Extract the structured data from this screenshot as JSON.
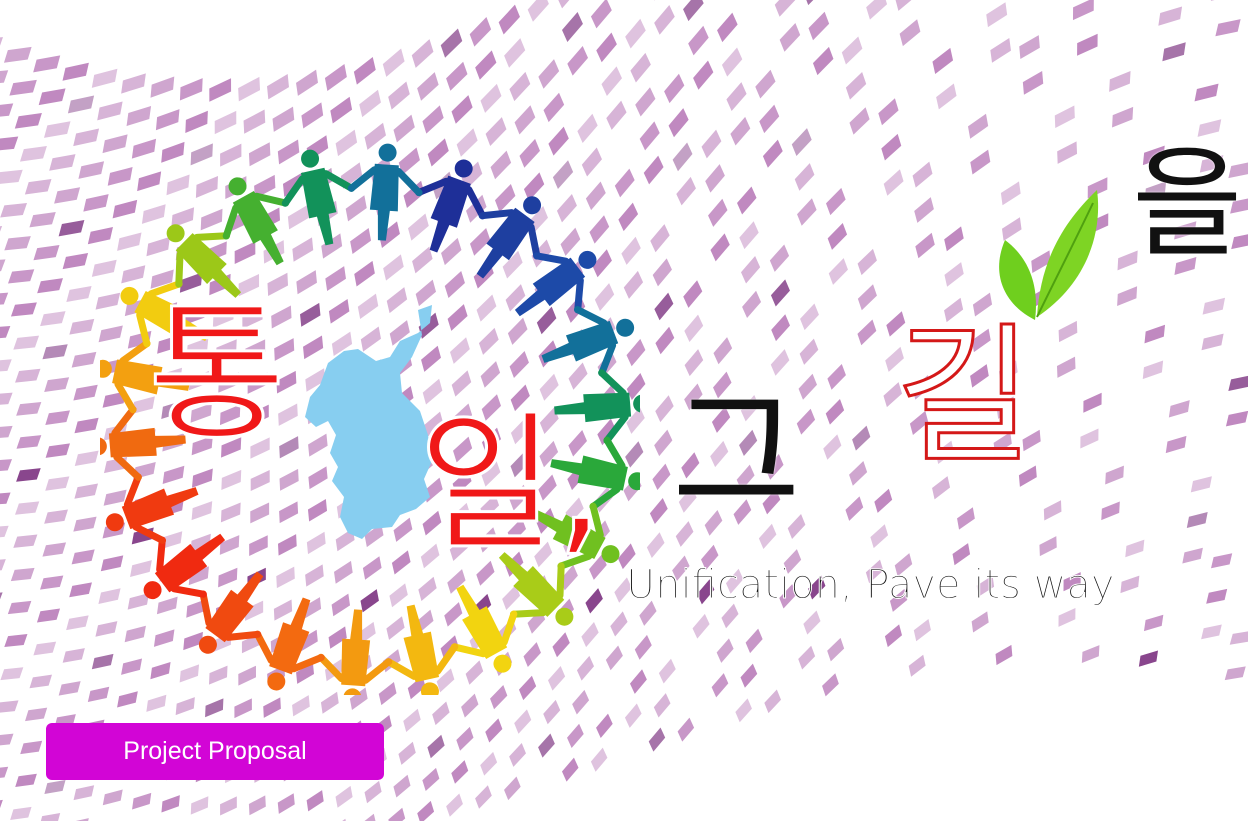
{
  "title": {
    "char_1": "통",
    "char_2": "일,",
    "char_3": "그",
    "char_4": "길",
    "char_5": "을"
  },
  "subtitle": "Unification, Pave its way",
  "badge": {
    "label": "Project Proposal",
    "color": "#d205d6"
  },
  "colors": {
    "mosaic": "#b87ab8",
    "mosaic_dark": "#7a2f7f",
    "korea_map": "#87cef0",
    "title_red": "#f01818",
    "leaf": "#6fcf1e"
  },
  "icons": {
    "people_ring": "people-holding-hands-ring",
    "map": "korean-peninsula-map",
    "leaves": "sprout-leaves"
  }
}
